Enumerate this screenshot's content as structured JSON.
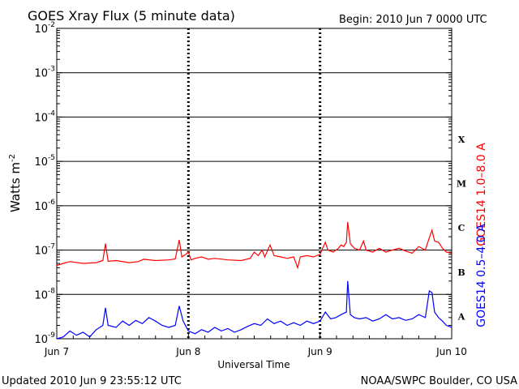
{
  "header": {
    "title": "GOES Xray Flux (5 minute data)",
    "begin": "Begin:  2010 Jun 7 0000 UTC"
  },
  "footer": {
    "updated": "Updated 2010 Jun  9 23:55:12 UTC",
    "source": "NOAA/SWPC Boulder, CO USA"
  },
  "chart_data": {
    "type": "line",
    "ylabel": "Watts m",
    "ylabel_sup": "-2",
    "xlabel": "Universal Time",
    "yscale": "log",
    "ylim": [
      1e-09,
      0.01
    ],
    "y_ticks": [
      {
        "exp": -2,
        "label_base": "10",
        "label_sup": "-2"
      },
      {
        "exp": -3,
        "label_base": "10",
        "label_sup": "-3"
      },
      {
        "exp": -4,
        "label_base": "10",
        "label_sup": "-4"
      },
      {
        "exp": -5,
        "label_base": "10",
        "label_sup": "-5"
      },
      {
        "exp": -6,
        "label_base": "10",
        "label_sup": "-6"
      },
      {
        "exp": -7,
        "label_base": "10",
        "label_sup": "-7"
      },
      {
        "exp": -8,
        "label_base": "10",
        "label_sup": "-8"
      },
      {
        "exp": -9,
        "label_base": "10",
        "label_sup": "-9"
      }
    ],
    "x_ticks": [
      {
        "day": 0,
        "label": "Jun 7"
      },
      {
        "day": 1,
        "label": "Jun 8"
      },
      {
        "day": 2,
        "label": "Jun 9"
      },
      {
        "day": 3,
        "label": "Jun 10"
      }
    ],
    "flare_classes": [
      {
        "label": "X",
        "exp": -4
      },
      {
        "label": "M",
        "exp": -5
      },
      {
        "label": "C",
        "exp": -6
      },
      {
        "label": "B",
        "exp": -7
      },
      {
        "label": "A",
        "exp": -8
      }
    ],
    "grid": true,
    "series": [
      {
        "name": "GOES14 1.0–8.0 A",
        "color": "#ff0000",
        "points": [
          [
            0.0,
            4.5e-08
          ],
          [
            0.05,
            5e-08
          ],
          [
            0.1,
            5.5e-08
          ],
          [
            0.2,
            5e-08
          ],
          [
            0.3,
            5.2e-08
          ],
          [
            0.35,
            5.8e-08
          ],
          [
            0.37,
            1.4e-07
          ],
          [
            0.39,
            5.6e-08
          ],
          [
            0.45,
            5.8e-08
          ],
          [
            0.55,
            5.2e-08
          ],
          [
            0.62,
            5.5e-08
          ],
          [
            0.66,
            6.2e-08
          ],
          [
            0.75,
            5.8e-08
          ],
          [
            0.85,
            6e-08
          ],
          [
            0.9,
            6.3e-08
          ],
          [
            0.93,
            1.7e-07
          ],
          [
            0.95,
            7e-08
          ],
          [
            0.98,
            8e-08
          ],
          [
            1.0,
            9e-08
          ],
          [
            1.02,
            6e-08
          ],
          [
            1.05,
            6.5e-08
          ],
          [
            1.1,
            7e-08
          ],
          [
            1.15,
            6.2e-08
          ],
          [
            1.2,
            6.5e-08
          ],
          [
            1.3,
            6e-08
          ],
          [
            1.4,
            5.8e-08
          ],
          [
            1.47,
            6.5e-08
          ],
          [
            1.5,
            9e-08
          ],
          [
            1.53,
            7.5e-08
          ],
          [
            1.56,
            1e-07
          ],
          [
            1.58,
            7e-08
          ],
          [
            1.62,
            1.3e-07
          ],
          [
            1.65,
            7.5e-08
          ],
          [
            1.7,
            7e-08
          ],
          [
            1.75,
            6.5e-08
          ],
          [
            1.8,
            7e-08
          ],
          [
            1.83,
            4e-08
          ],
          [
            1.85,
            7e-08
          ],
          [
            1.9,
            7.5e-08
          ],
          [
            1.95,
            7e-08
          ],
          [
            2.0,
            8e-08
          ],
          [
            2.02,
            1.1e-07
          ],
          [
            2.04,
            1.5e-07
          ],
          [
            2.06,
            1e-07
          ],
          [
            2.1,
            9e-08
          ],
          [
            2.14,
            1.1e-07
          ],
          [
            2.16,
            1.3e-07
          ],
          [
            2.18,
            1.2e-07
          ],
          [
            2.2,
            1.5e-07
          ],
          [
            2.21,
            4.3e-07
          ],
          [
            2.23,
            1.4e-07
          ],
          [
            2.26,
            1.1e-07
          ],
          [
            2.3,
            1e-07
          ],
          [
            2.33,
            1.6e-07
          ],
          [
            2.35,
            1e-07
          ],
          [
            2.4,
            9e-08
          ],
          [
            2.45,
            1.1e-07
          ],
          [
            2.5,
            9e-08
          ],
          [
            2.55,
            1e-07
          ],
          [
            2.6,
            1.1e-07
          ],
          [
            2.65,
            9.5e-08
          ],
          [
            2.7,
            8.5e-08
          ],
          [
            2.75,
            1.2e-07
          ],
          [
            2.8,
            1e-07
          ],
          [
            2.83,
            1.9e-07
          ],
          [
            2.85,
            2.8e-07
          ],
          [
            2.87,
            1.6e-07
          ],
          [
            2.9,
            1.5e-07
          ],
          [
            2.93,
            1.1e-07
          ],
          [
            2.96,
            9e-08
          ],
          [
            3.0,
            8.5e-08
          ]
        ]
      },
      {
        "name": "GOES14 0.5–4.0 A",
        "color": "#0000ff",
        "points": [
          [
            0.0,
            1e-09
          ],
          [
            0.05,
            1.1e-09
          ],
          [
            0.1,
            1.5e-09
          ],
          [
            0.15,
            1.2e-09
          ],
          [
            0.2,
            1.4e-09
          ],
          [
            0.25,
            1.1e-09
          ],
          [
            0.3,
            1.6e-09
          ],
          [
            0.35,
            2e-09
          ],
          [
            0.37,
            5e-09
          ],
          [
            0.39,
            2e-09
          ],
          [
            0.45,
            1.8e-09
          ],
          [
            0.5,
            2.5e-09
          ],
          [
            0.55,
            2e-09
          ],
          [
            0.6,
            2.6e-09
          ],
          [
            0.65,
            2.2e-09
          ],
          [
            0.7,
            3e-09
          ],
          [
            0.75,
            2.5e-09
          ],
          [
            0.8,
            2e-09
          ],
          [
            0.85,
            1.8e-09
          ],
          [
            0.9,
            2e-09
          ],
          [
            0.93,
            5.5e-09
          ],
          [
            0.96,
            2.5e-09
          ],
          [
            1.0,
            1.5e-09
          ],
          [
            1.05,
            1.3e-09
          ],
          [
            1.1,
            1.6e-09
          ],
          [
            1.15,
            1.4e-09
          ],
          [
            1.2,
            1.8e-09
          ],
          [
            1.25,
            1.5e-09
          ],
          [
            1.3,
            1.7e-09
          ],
          [
            1.35,
            1.4e-09
          ],
          [
            1.4,
            1.6e-09
          ],
          [
            1.45,
            1.9e-09
          ],
          [
            1.5,
            2.2e-09
          ],
          [
            1.55,
            2e-09
          ],
          [
            1.6,
            2.8e-09
          ],
          [
            1.65,
            2.2e-09
          ],
          [
            1.7,
            2.5e-09
          ],
          [
            1.75,
            2e-09
          ],
          [
            1.8,
            2.3e-09
          ],
          [
            1.85,
            2e-09
          ],
          [
            1.9,
            2.5e-09
          ],
          [
            1.95,
            2.2e-09
          ],
          [
            2.0,
            2.5e-09
          ],
          [
            2.04,
            4e-09
          ],
          [
            2.08,
            2.8e-09
          ],
          [
            2.12,
            3e-09
          ],
          [
            2.16,
            3.5e-09
          ],
          [
            2.2,
            4e-09
          ],
          [
            2.21,
            2e-08
          ],
          [
            2.23,
            3.5e-09
          ],
          [
            2.26,
            3e-09
          ],
          [
            2.3,
            2.8e-09
          ],
          [
            2.35,
            3e-09
          ],
          [
            2.4,
            2.5e-09
          ],
          [
            2.45,
            2.8e-09
          ],
          [
            2.5,
            3.5e-09
          ],
          [
            2.55,
            2.8e-09
          ],
          [
            2.6,
            3e-09
          ],
          [
            2.65,
            2.6e-09
          ],
          [
            2.7,
            2.8e-09
          ],
          [
            2.75,
            3.5e-09
          ],
          [
            2.8,
            3e-09
          ],
          [
            2.83,
            1.2e-08
          ],
          [
            2.85,
            1.1e-08
          ],
          [
            2.87,
            4e-09
          ],
          [
            2.9,
            3e-09
          ],
          [
            2.93,
            2.5e-09
          ],
          [
            2.96,
            2e-09
          ],
          [
            3.0,
            1.8e-09
          ]
        ]
      }
    ]
  }
}
